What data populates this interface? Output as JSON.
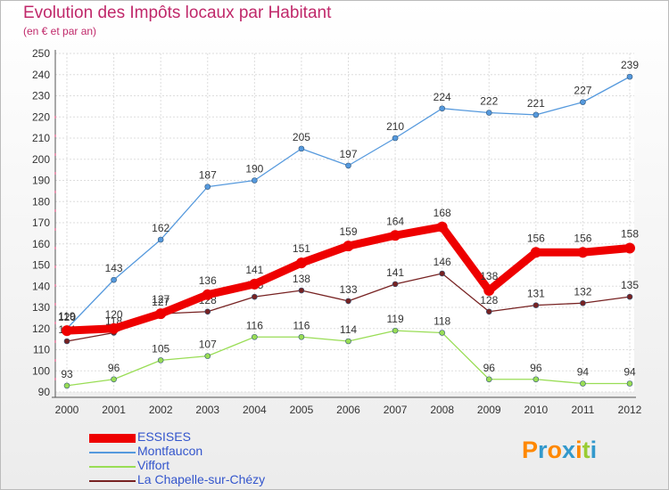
{
  "chart_data": {
    "type": "line",
    "title": "Evolution des Impôts locaux par Habitant",
    "subtitle": "(en € et par an)",
    "x": [
      "2000",
      "2001",
      "2002",
      "2003",
      "2004",
      "2005",
      "2006",
      "2007",
      "2008",
      "2009",
      "2010",
      "2011",
      "2012"
    ],
    "ylim": [
      90,
      250
    ],
    "yticks": [
      90,
      100,
      110,
      120,
      130,
      140,
      150,
      160,
      170,
      180,
      190,
      200,
      210,
      220,
      230,
      240,
      250
    ],
    "grid": true,
    "legend_position": "bottom-left",
    "series": [
      {
        "name": "ESSISES",
        "color": "#ee0000",
        "values": [
          119,
          120,
          127,
          136,
          141,
          151,
          159,
          164,
          168,
          138,
          156,
          156,
          158
        ]
      },
      {
        "name": "Montfaucon",
        "color": "#5599dd",
        "values": [
          120,
          143,
          162,
          187,
          190,
          205,
          197,
          210,
          224,
          222,
          221,
          227,
          239
        ]
      },
      {
        "name": "Viffort",
        "color": "#99dd55",
        "values": [
          93,
          96,
          105,
          107,
          116,
          116,
          114,
          119,
          118,
          96,
          96,
          94,
          94
        ]
      },
      {
        "name": "La Chapelle-sur-Chézy",
        "color": "#772222",
        "values": [
          114,
          118,
          127,
          128,
          135,
          138,
          133,
          141,
          146,
          128,
          131,
          132,
          135
        ]
      }
    ]
  },
  "logo": {
    "letters": [
      "P",
      "r",
      "o",
      "x",
      "i",
      "t",
      "i"
    ],
    "colors": [
      "#ff8800",
      "#3399cc",
      "#ff8800",
      "#3399cc",
      "#ff8800",
      "#99cc33",
      "#3399cc"
    ]
  }
}
